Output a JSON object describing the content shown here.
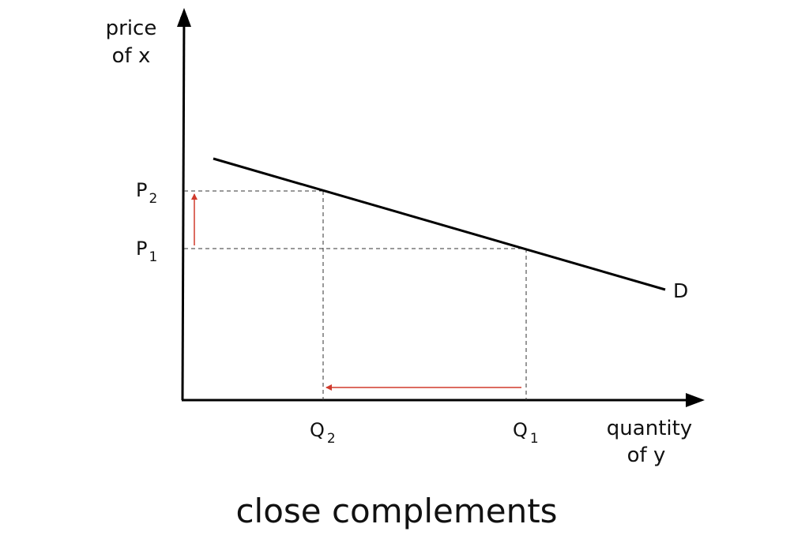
{
  "y_axis_label": [
    "price",
    "of x"
  ],
  "x_axis_label": [
    "quantity",
    "of y"
  ],
  "price_labels": [
    {
      "letter": "P",
      "subscript": "2"
    },
    {
      "letter": "P",
      "subscript": "1"
    }
  ],
  "quantity_labels": [
    {
      "letter": "Q",
      "subscript": "2"
    },
    {
      "letter": "Q",
      "subscript": "1"
    }
  ],
  "curve_label": "D",
  "caption": "close complements"
}
